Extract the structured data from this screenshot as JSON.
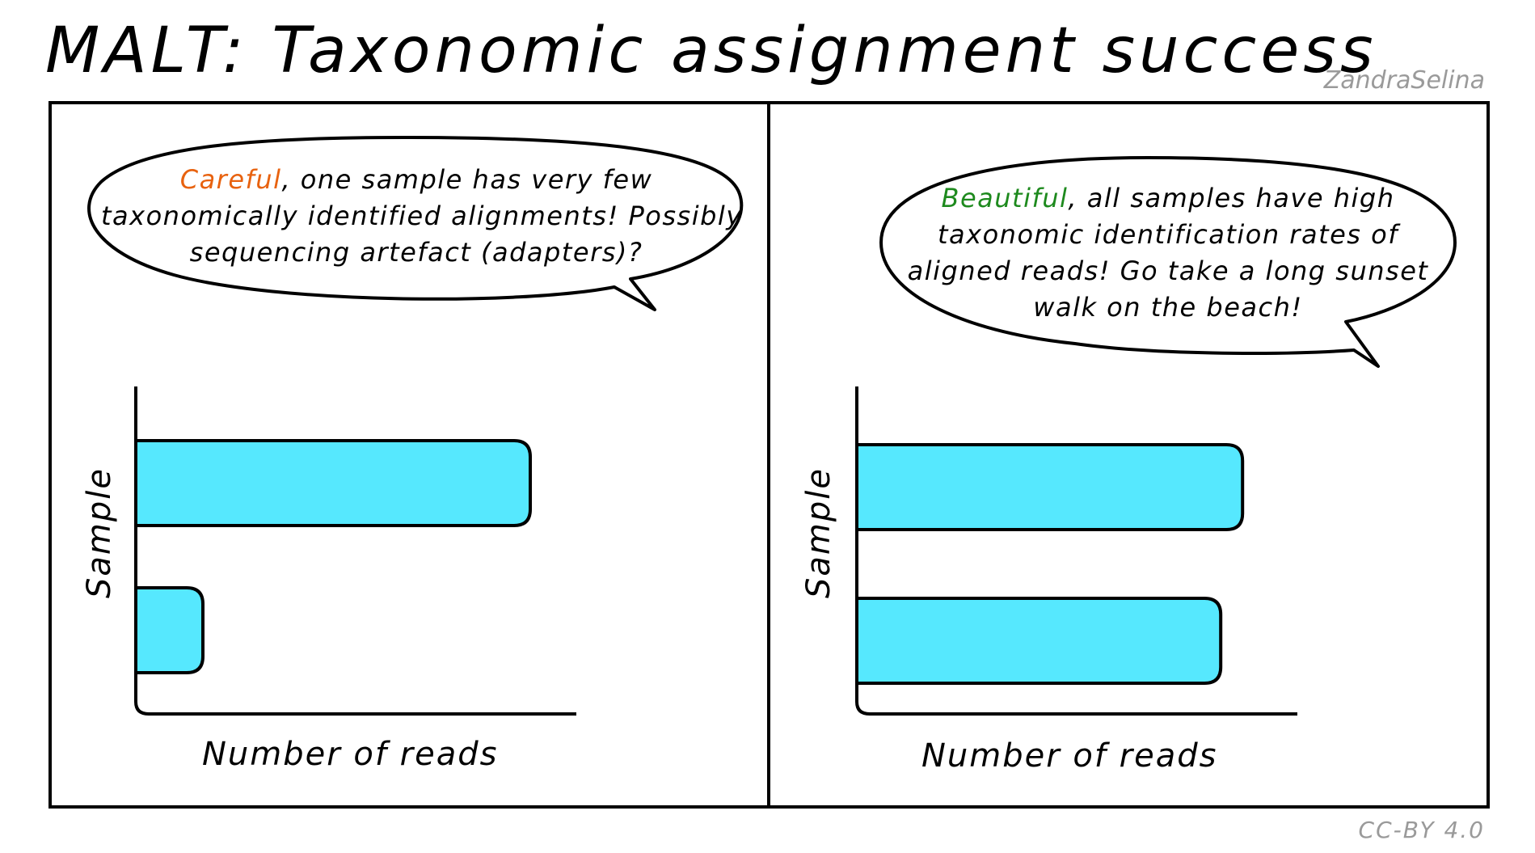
{
  "title": "MALT: Taxonomic assignment success",
  "credit": "ZandraSelina",
  "license": "CC-BY 4.0",
  "colors": {
    "bar": "#56e8fe",
    "warning": "#e8620f",
    "good": "#1e8a1e"
  },
  "panels": [
    {
      "bubble": {
        "highlight": "Careful",
        "line1_rest": ", one sample has very few",
        "line2": "taxonomically identified alignments! Possibly",
        "line3": "sequencing artefact (adapters)?"
      },
      "xlabel": "Number of reads",
      "ylabel": "Sample",
      "bars": [
        0.9,
        0.15
      ]
    },
    {
      "bubble": {
        "highlight": "Beautiful",
        "line1_rest": ", all samples have high",
        "line2": "taxonomic identification rates of",
        "line3": "aligned reads! Go take a long sunset",
        "line4": "walk on the beach!"
      },
      "xlabel": "Number of reads",
      "ylabel": "Sample",
      "bars": [
        0.88,
        0.83
      ]
    }
  ]
}
